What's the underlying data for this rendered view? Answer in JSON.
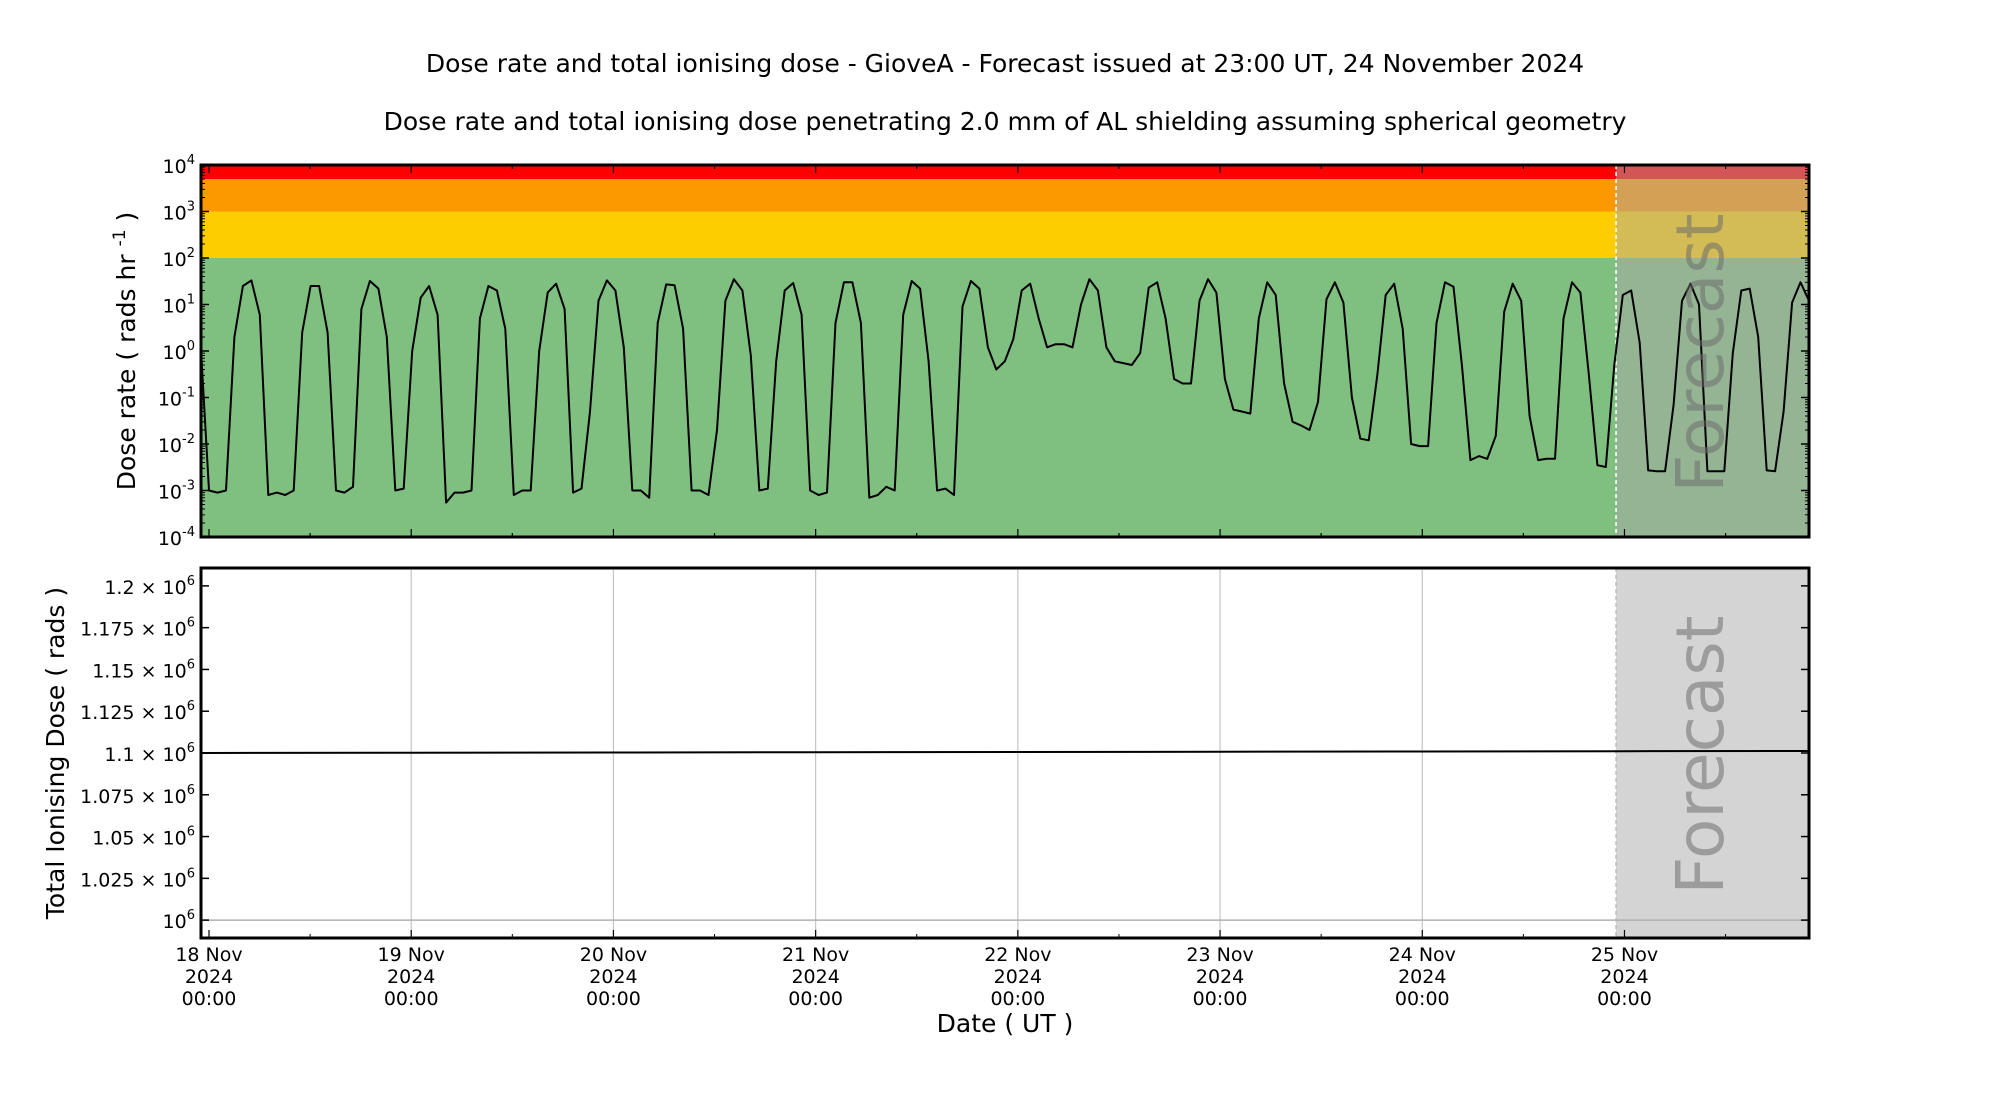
{
  "title": "Dose rate and total ionising dose - GioveA - Forecast issued at 23:00 UT, 24 November 2024",
  "subtitle": "Dose rate and total ionising dose penetrating 2.0 mm of AL shielding assuming spherical geometry",
  "forecast_label": "Forecast",
  "colors": {
    "red": "#ff0000",
    "orange": "#fc9900",
    "yellow": "#fdcd00",
    "green": "#7fbf7f",
    "forecast_overlay": "rgba(169,169,169,0.5)",
    "line": "#000000"
  },
  "chart_data": [
    {
      "type": "line",
      "title": "Dose rate",
      "ylabel": "Dose rate ( rads hr",
      "ylabel_sup": "-1",
      "ylabel_end": " )",
      "yscale": "log",
      "ylim": [
        0.0001,
        10000
      ],
      "xlim_hours_from_18Nov0000": [
        -0.95,
        189.9
      ],
      "forecast_start_hours": 167,
      "y_ticks": [
        {
          "base": "10",
          "exp": "4",
          "v": 4
        },
        {
          "base": "10",
          "exp": "3",
          "v": 3
        },
        {
          "base": "10",
          "exp": "2",
          "v": 2
        },
        {
          "base": "10",
          "exp": "1",
          "v": 1
        },
        {
          "base": "10",
          "exp": "0",
          "v": 0
        },
        {
          "base": "10",
          "exp": "-1",
          "v": -1
        },
        {
          "base": "10",
          "exp": "-2",
          "v": -2
        },
        {
          "base": "10",
          "exp": "-3",
          "v": -3
        },
        {
          "base": "10",
          "exp": "-4",
          "v": -4
        }
      ],
      "bands": [
        {
          "name": "green",
          "from": 0.0001,
          "to": 100
        },
        {
          "name": "yellow",
          "from": 100,
          "to": 1000
        },
        {
          "name": "orange",
          "from": 1000,
          "to": 5000
        },
        {
          "name": "red",
          "from": 5000,
          "to": 10000
        }
      ],
      "x_start_hours": -1,
      "x_end_hours": 189.9,
      "values": [
        1.5,
        0.001,
        0.0009,
        0.001,
        2,
        25,
        33,
        6,
        0.0008,
        0.0009,
        0.0008,
        0.001,
        2.5,
        25,
        25,
        2.5,
        0.001,
        0.0009,
        0.0012,
        8,
        32,
        22,
        2,
        0.001,
        0.0011,
        1,
        14,
        25,
        6,
        0.00055,
        0.0009,
        0.0009,
        0.001,
        5,
        25,
        20,
        3,
        0.0008,
        0.001,
        0.001,
        1,
        18,
        28,
        8,
        0.0009,
        0.0011,
        0.05,
        12,
        33,
        20,
        1.2,
        0.001,
        0.001,
        0.0007,
        4,
        27,
        26,
        3,
        0.001,
        0.001,
        0.0008,
        0.02,
        12,
        35,
        20,
        0.8,
        0.001,
        0.0011,
        0.6,
        20,
        29,
        6,
        0.001,
        0.0008,
        0.0009,
        4,
        30,
        30,
        4,
        0.0007,
        0.0008,
        0.0012,
        0.001,
        6,
        32,
        22,
        0.6,
        0.001,
        0.0011,
        0.0008,
        9,
        32,
        22,
        1.2,
        0.4,
        0.6,
        1.8,
        20,
        28,
        5,
        1.2,
        1.4,
        1.4,
        1.2,
        10,
        35,
        20,
        1.2,
        0.6,
        0.55,
        0.5,
        0.9,
        23,
        30,
        5,
        0.25,
        0.2,
        0.2,
        12,
        35,
        18,
        0.25,
        0.055,
        0.05,
        0.045,
        5,
        30,
        16,
        0.2,
        0.03,
        0.025,
        0.02,
        0.08,
        13,
        30,
        11,
        0.1,
        0.013,
        0.012,
        0.3,
        16,
        28,
        3,
        0.01,
        0.009,
        0.009,
        4,
        30,
        24,
        0.5,
        0.0045,
        0.0055,
        0.0048,
        0.015,
        7,
        28,
        12,
        0.04,
        0.0045,
        0.0048,
        0.0048,
        5,
        30,
        18,
        0.3,
        0.0035,
        0.0032,
        0.5,
        16,
        20,
        1.5,
        0.0027,
        0.0026,
        0.0026,
        0.07,
        12,
        28,
        10,
        0.0026,
        0.0026,
        0.0026,
        0.9,
        20,
        22,
        2,
        0.0027,
        0.0026,
        0.05,
        11,
        30,
        12
      ]
    },
    {
      "type": "line",
      "title": "Total ionising dose",
      "ylabel": "Total Ionising Dose ( rads )",
      "ylim": [
        989300,
        1210700
      ],
      "xlim_hours_from_18Nov0000": [
        -0.95,
        189.9
      ],
      "forecast_start_hours": 167,
      "y_ticks": [
        {
          "mant": "1.2 × ",
          "base": "10",
          "exp": "6",
          "v": 1200000
        },
        {
          "mant": "1.175 × ",
          "base": "10",
          "exp": "6",
          "v": 1175000
        },
        {
          "mant": "1.15 × ",
          "base": "10",
          "exp": "6",
          "v": 1150000
        },
        {
          "mant": "1.125 × ",
          "base": "10",
          "exp": "6",
          "v": 1125000
        },
        {
          "mant": "1.1 × ",
          "base": "10",
          "exp": "6",
          "v": 1100000
        },
        {
          "mant": "1.075 × ",
          "base": "10",
          "exp": "6",
          "v": 1075000
        },
        {
          "mant": "1.05 × ",
          "base": "10",
          "exp": "6",
          "v": 1050000
        },
        {
          "mant": "1.025 × ",
          "base": "10",
          "exp": "6",
          "v": 1025000
        },
        {
          "mant": "",
          "base": "10",
          "exp": "6",
          "v": 1000000
        }
      ],
      "x_hours": [
        -1,
        24,
        48,
        72,
        96,
        120,
        144,
        168,
        189.9
      ],
      "values": [
        1100000,
        1100150,
        1100300,
        1100450,
        1100600,
        1100750,
        1100900,
        1101050,
        1101200
      ],
      "xlabel": "Date ( UT )",
      "x_ticks": [
        {
          "h": 0,
          "l1": "18 Nov",
          "l2": "2024",
          "l3": "00:00"
        },
        {
          "h": 24,
          "l1": "19 Nov",
          "l2": "2024",
          "l3": "00:00"
        },
        {
          "h": 48,
          "l1": "20 Nov",
          "l2": "2024",
          "l3": "00:00"
        },
        {
          "h": 72,
          "l1": "21 Nov",
          "l2": "2024",
          "l3": "00:00"
        },
        {
          "h": 96,
          "l1": "22 Nov",
          "l2": "2024",
          "l3": "00:00"
        },
        {
          "h": 120,
          "l1": "23 Nov",
          "l2": "2024",
          "l3": "00:00"
        },
        {
          "h": 144,
          "l1": "24 Nov",
          "l2": "2024",
          "l3": "00:00"
        },
        {
          "h": 168,
          "l1": "25 Nov",
          "l2": "2024",
          "l3": "00:00"
        }
      ]
    }
  ]
}
